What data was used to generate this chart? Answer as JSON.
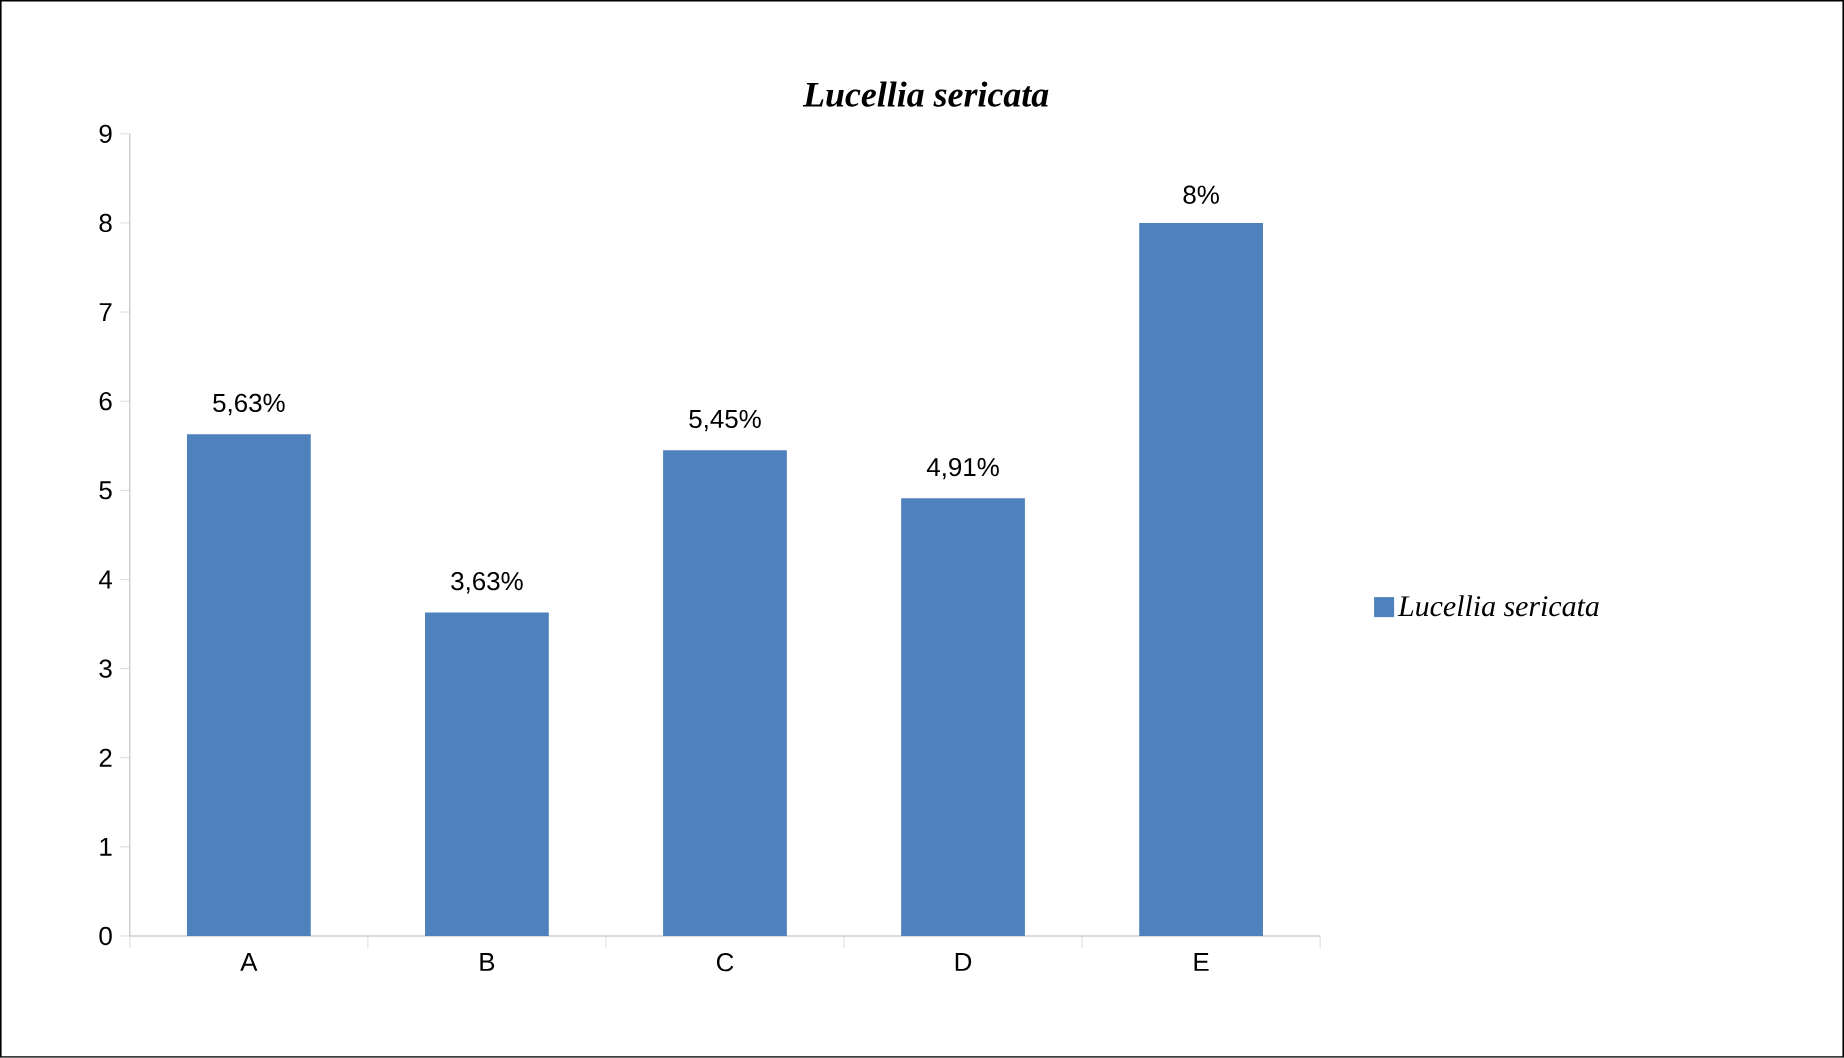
{
  "chart_data": {
    "type": "bar",
    "title": "*Lucellia sericata*",
    "categories": [
      "A",
      "B",
      "C",
      "D",
      "E"
    ],
    "series": [
      {
        "name": "*Lucellia sericata*",
        "color": "#4f81bd",
        "values": [
          5.63,
          3.63,
          5.45,
          4.91,
          8
        ],
        "value_labels": [
          "5,63%",
          "3,63%",
          "5,45%",
          "4,91%",
          "8%"
        ]
      }
    ],
    "ylim": [
      0,
      9
    ],
    "yticks": [
      0,
      1,
      2,
      3,
      4,
      5,
      6,
      7,
      8,
      9
    ],
    "legend": "right"
  }
}
